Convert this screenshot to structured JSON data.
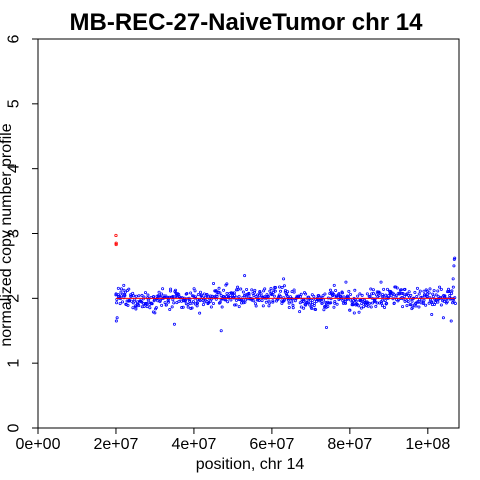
{
  "chart_data": {
    "type": "scatter",
    "title": "MB-REC-27-NaiveTumor chr 14",
    "xlabel": "position, chr 14",
    "ylabel": "normalized copy number profile",
    "xlim": [
      0,
      108000000
    ],
    "ylim": [
      0,
      6
    ],
    "x_ticks": [
      {
        "value": 0,
        "label": "0e+00"
      },
      {
        "value": 20000000,
        "label": "2e+07"
      },
      {
        "value": 40000000,
        "label": "4e+07"
      },
      {
        "value": 60000000,
        "label": "6e+07"
      },
      {
        "value": 80000000,
        "label": "8e+07"
      },
      {
        "value": 100000000,
        "label": "1e+08"
      }
    ],
    "y_ticks": [
      {
        "value": 0,
        "label": "0"
      },
      {
        "value": 1,
        "label": "1"
      },
      {
        "value": 2,
        "label": "2"
      },
      {
        "value": 3,
        "label": "3"
      },
      {
        "value": 4,
        "label": "4"
      },
      {
        "value": 5,
        "label": "5"
      },
      {
        "value": 6,
        "label": "6"
      }
    ],
    "grid": false,
    "legend": "none",
    "series": [
      {
        "color": "#0000ff",
        "x_start": 20000000,
        "x_end": 107000000,
        "x_step": 250000,
        "baseline": 2.0,
        "spread": 0.12,
        "notable_points": [
          [
            20100000,
            1.65
          ],
          [
            20300000,
            1.7
          ],
          [
            22000000,
            2.2
          ],
          [
            35000000,
            1.6
          ],
          [
            47000000,
            1.5
          ],
          [
            53000000,
            2.35
          ],
          [
            63000000,
            2.3
          ],
          [
            74000000,
            1.55
          ],
          [
            76000000,
            2.2
          ],
          [
            79000000,
            2.25
          ],
          [
            88000000,
            2.25
          ],
          [
            101000000,
            1.75
          ],
          [
            104000000,
            1.7
          ],
          [
            106000000,
            1.65
          ],
          [
            106500000,
            2.3
          ],
          [
            106700000,
            2.5
          ],
          [
            106800000,
            2.6
          ],
          [
            106900000,
            2.62
          ]
        ]
      },
      {
        "color": "#ff0000",
        "points": [
          [
            20000000,
            2.97
          ],
          [
            20050000,
            2.85
          ],
          [
            20050000,
            2.83
          ]
        ]
      }
    ],
    "segments": [
      {
        "x0": 20000000,
        "x1": 107000000,
        "y": 2.0,
        "color": "#ff0000"
      }
    ]
  }
}
